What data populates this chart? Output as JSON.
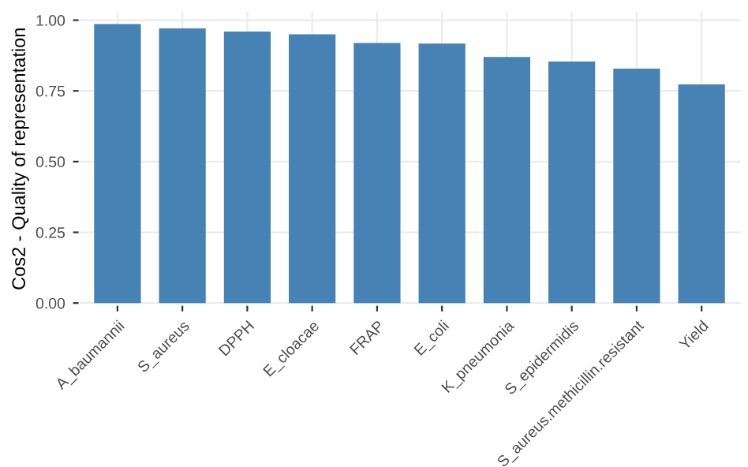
{
  "chart_data": {
    "type": "bar",
    "ylabel": "Cos2 - Quality of representation",
    "categories": [
      "A_baumannii",
      "S_aureus",
      "DPPH",
      "E_cloacae",
      "FRAP",
      "E_coli",
      "K_pneumonia",
      "S_epidermidis",
      "S_aureus.methicillin.resistant",
      "Yield"
    ],
    "values": [
      0.986,
      0.971,
      0.96,
      0.95,
      0.919,
      0.917,
      0.87,
      0.854,
      0.829,
      0.773
    ],
    "color": "#4682b4",
    "ylim": [
      -0.01,
      1.03
    ],
    "yticks": [
      {
        "value": 0,
        "label": "0.00"
      },
      {
        "value": 0.25,
        "label": "0.25"
      },
      {
        "value": 0.5,
        "label": "0.50"
      },
      {
        "value": 0.75,
        "label": "0.75"
      },
      {
        "value": 1,
        "label": "1.00"
      }
    ],
    "grid": true
  }
}
